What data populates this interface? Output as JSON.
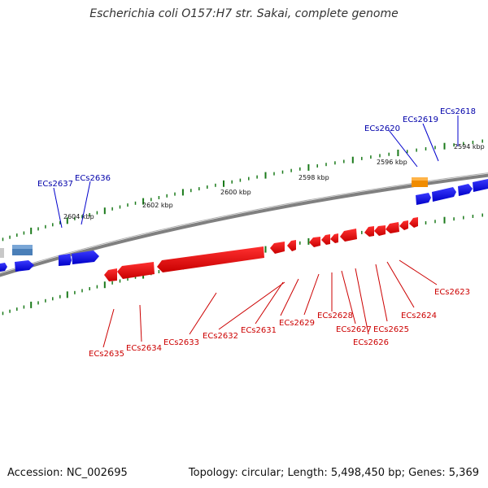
{
  "title": "Escherichia coli O157:H7 str. Sakai, complete genome",
  "footer": {
    "accession": "Accession: NC_002695",
    "summary": "Topology: circular; Length: 5,498,450 bp; Genes: 5,369"
  },
  "colors": {
    "forward_gene": "#0000ee",
    "reverse_gene": "#ee0000",
    "forward_label": "#0000aa",
    "reverse_label": "#cc0000",
    "highlight_gene": "#f08c00",
    "tick": "#1a7a1a",
    "backbone": "#808080"
  },
  "position_labels": [
    "2594 kbp",
    "2596 kbp",
    "2598 kbp",
    "2600 kbp",
    "2602 kbp",
    "2604 kbp"
  ],
  "forward_genes": [
    "ECs2618",
    "ECs2619",
    "ECs2620",
    "ECs2636",
    "ECs2637"
  ],
  "reverse_genes": [
    "ECs2623",
    "ECs2624",
    "ECs2625",
    "ECs2626",
    "ECs2627",
    "ECs2628",
    "ECs2629",
    "ECs2631",
    "ECs2632",
    "ECs2633",
    "ECs2634",
    "ECs2635"
  ]
}
